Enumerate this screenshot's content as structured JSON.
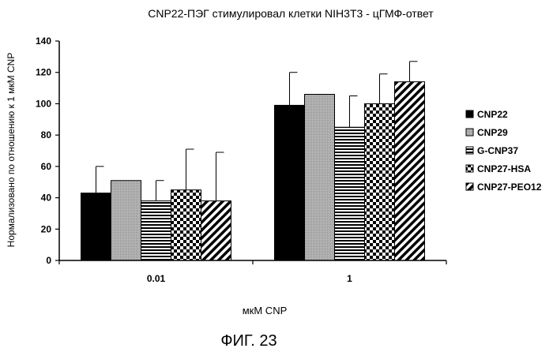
{
  "caption": "ФИГ. 23",
  "colors": {
    "CNP22": "#000000",
    "CNP29": "#b0b0b0",
    "G-CNP37": "horizontal-stripes",
    "CNP27-HSA": "checkerboard",
    "CNP27-PEO12": "diagonal-stripes"
  },
  "chart_data": {
    "type": "bar",
    "title": "CNP22-ПЭГ стимулировал клетки NIH3T3 - цГМФ-ответ",
    "xlabel": "мкМ CNP",
    "ylabel": "Нормализовано по отношению к 1 мкМ CNP",
    "categories": [
      "0.01",
      "1"
    ],
    "ylim": [
      0,
      140
    ],
    "yticks": [
      0,
      20,
      40,
      60,
      80,
      100,
      120,
      140
    ],
    "grid": false,
    "legend_position": "right",
    "error_bars": true,
    "series": [
      {
        "name": "CNP22",
        "values": [
          43,
          99
        ],
        "errors": [
          17,
          21
        ]
      },
      {
        "name": "CNP29",
        "values": [
          51,
          106
        ],
        "errors": [
          0,
          0
        ]
      },
      {
        "name": "G-CNP37",
        "values": [
          38,
          85
        ],
        "errors": [
          13,
          20
        ]
      },
      {
        "name": "CNP27-HSA",
        "values": [
          45,
          100
        ],
        "errors": [
          26,
          19
        ]
      },
      {
        "name": "CNP27-PEO12",
        "values": [
          38,
          114
        ],
        "errors": [
          31,
          13
        ]
      }
    ]
  }
}
